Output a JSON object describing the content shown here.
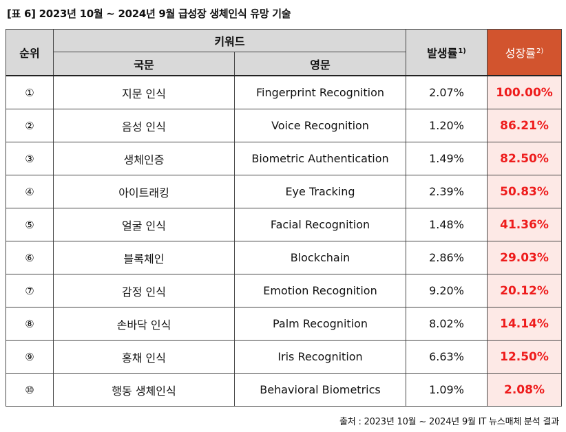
{
  "title": "[표 6] 2023년 10월 ~ 2024년 9월 급성장 생체인식 유망 기술",
  "header": {
    "rank": "순위",
    "keyword": "키워드",
    "korean": "국문",
    "english": "영문",
    "occurrence": "발생률",
    "occurrence_note": "1)",
    "growth": "성장률",
    "growth_note": "2)"
  },
  "colors": {
    "header_bg": "#d9d9d9",
    "growth_header_bg": "#d2542e",
    "growth_cell_bg": "#fde9e6",
    "growth_text": "#ee1c1c"
  },
  "rows": [
    {
      "rank": "①",
      "korean": "지문 인식",
      "english": "Fingerprint Recognition",
      "occurrence": "2.07%",
      "growth": "100.00%"
    },
    {
      "rank": "②",
      "korean": "음성 인식",
      "english": "Voice Recognition",
      "occurrence": "1.20%",
      "growth": "86.21%"
    },
    {
      "rank": "③",
      "korean": "생체인증",
      "english": "Biometric Authentication",
      "occurrence": "1.49%",
      "growth": "82.50%"
    },
    {
      "rank": "④",
      "korean": "아이트래킹",
      "english": "Eye Tracking",
      "occurrence": "2.39%",
      "growth": "50.83%"
    },
    {
      "rank": "⑤",
      "korean": "얼굴 인식",
      "english": "Facial Recognition",
      "occurrence": "1.48%",
      "growth": "41.36%"
    },
    {
      "rank": "⑥",
      "korean": "블록체인",
      "english": "Blockchain",
      "occurrence": "2.86%",
      "growth": "29.03%"
    },
    {
      "rank": "⑦",
      "korean": "감정 인식",
      "english": "Emotion Recognition",
      "occurrence": "9.20%",
      "growth": "20.12%"
    },
    {
      "rank": "⑧",
      "korean": "손바닥 인식",
      "english": "Palm Recognition",
      "occurrence": "8.02%",
      "growth": "14.14%"
    },
    {
      "rank": "⑨",
      "korean": "홍채 인식",
      "english": "Iris Recognition",
      "occurrence": "6.63%",
      "growth": "12.50%"
    },
    {
      "rank": "⑩",
      "korean": "행동 생체인식",
      "english": "Behavioral Biometrics",
      "occurrence": "1.09%",
      "growth": "2.08%"
    }
  ],
  "source": "출처 : 2023년 10월 ~ 2024년 9월 IT 뉴스매체 분석 결과"
}
